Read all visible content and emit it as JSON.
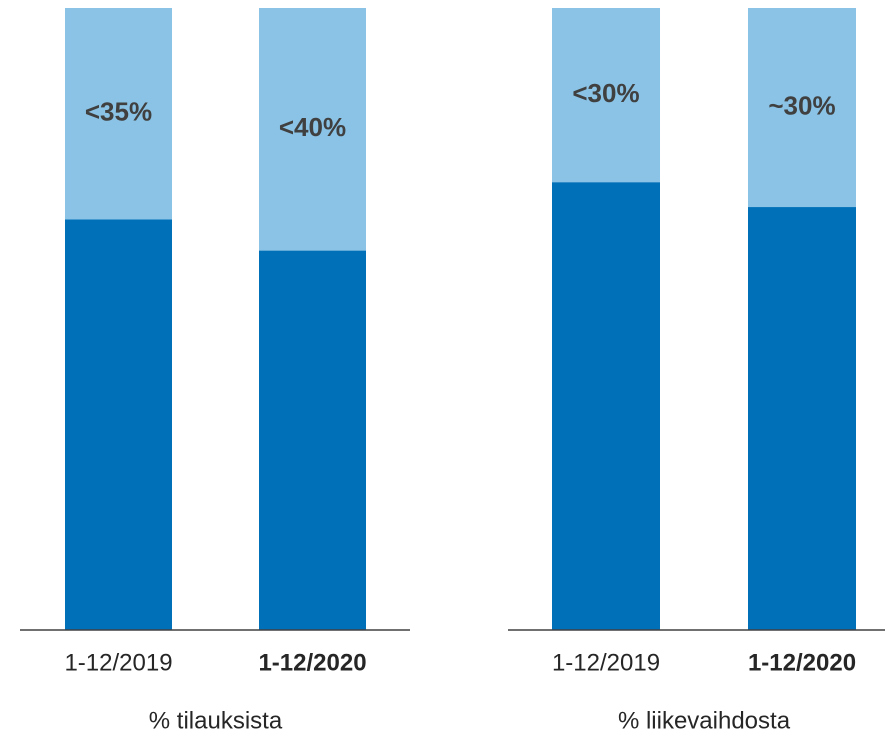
{
  "chart_data": [
    {
      "type": "stacked-bar",
      "xlabel": "% tilauksista",
      "categories": [
        "1-12/2019",
        "1-12/2020"
      ],
      "bold_categories": [
        false,
        true
      ],
      "ylim": [
        0,
        100
      ],
      "series": [
        {
          "color": "#0070b8",
          "values": [
            66,
            61
          ]
        },
        {
          "color": "#8ac3e6",
          "values": [
            34,
            39
          ],
          "value_labels": [
            "<35%",
            "<40%"
          ]
        }
      ]
    },
    {
      "type": "stacked-bar",
      "xlabel": "% liikevaihdosta",
      "categories": [
        "1-12/2019",
        "1-12/2020"
      ],
      "bold_categories": [
        false,
        true
      ],
      "ylim": [
        0,
        100
      ],
      "series": [
        {
          "color": "#0070b8",
          "values": [
            72,
            68
          ]
        },
        {
          "color": "#8ac3e6",
          "values": [
            28,
            32
          ],
          "value_labels": [
            "<30%",
            "~30%"
          ]
        }
      ]
    }
  ]
}
